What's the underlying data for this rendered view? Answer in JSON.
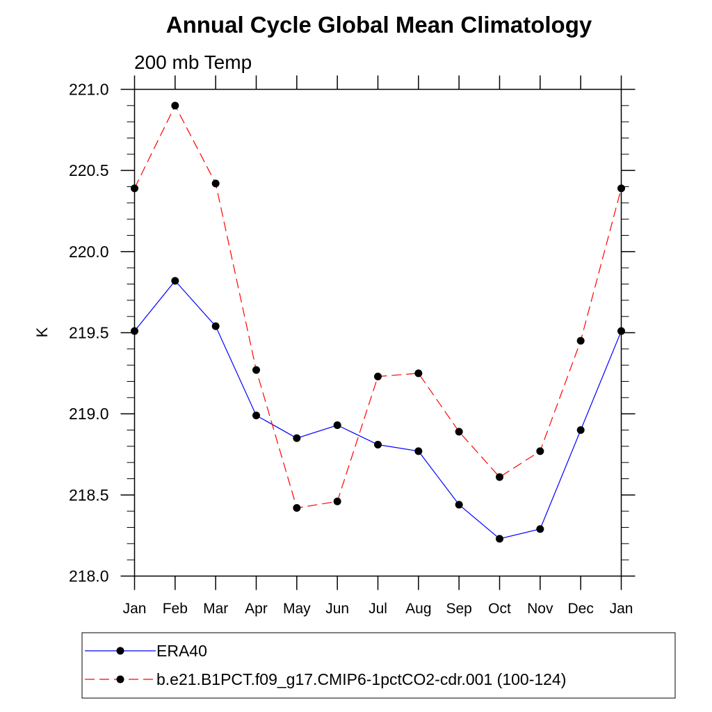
{
  "chart_data": {
    "type": "line",
    "title": "Annual Cycle Global Mean Climatology",
    "subtitle": "200 mb Temp",
    "xlabel": "",
    "ylabel": "K",
    "ylim": [
      218.0,
      221.0
    ],
    "yticks": [
      "218.0",
      "218.5",
      "219.0",
      "219.5",
      "220.0",
      "220.5",
      "221.0"
    ],
    "categories": [
      "Jan",
      "Feb",
      "Mar",
      "Apr",
      "May",
      "Jun",
      "Jul",
      "Aug",
      "Sep",
      "Oct",
      "Nov",
      "Dec",
      "Jan"
    ],
    "series": [
      {
        "name": "ERA40",
        "color": "#0000ff",
        "dash": "solid",
        "values": [
          219.51,
          219.82,
          219.54,
          218.99,
          218.85,
          218.93,
          218.81,
          218.77,
          218.44,
          218.23,
          218.29,
          218.9,
          219.51
        ]
      },
      {
        "name": "b.e21.B1PCT.f09_g17.CMIP6-1pctCO2-cdr.001 (100-124)",
        "color": "#ff0000",
        "dash": "dashed",
        "values": [
          220.39,
          220.9,
          220.42,
          219.27,
          218.42,
          218.46,
          219.23,
          219.25,
          218.89,
          218.61,
          218.77,
          219.45,
          220.39
        ]
      }
    ],
    "legend_position": "bottom"
  }
}
